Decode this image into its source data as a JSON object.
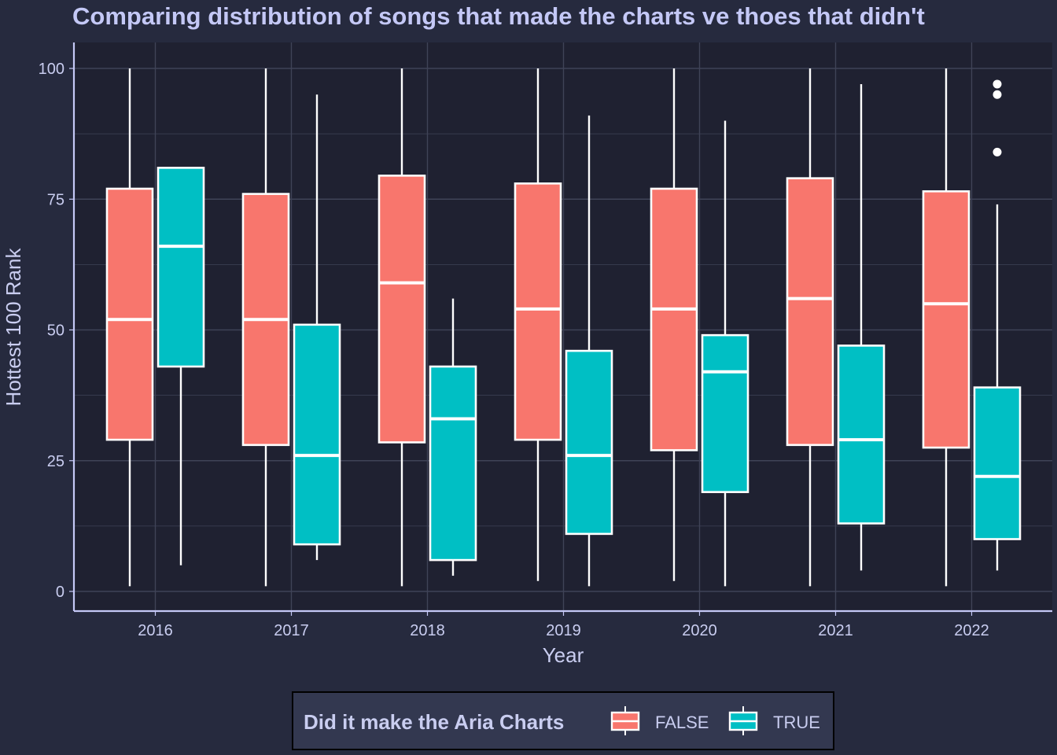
{
  "chart_data": {
    "type": "boxplot",
    "title": "Comparing distribution of songs that made the charts ve thoes that didn't",
    "xlabel": "Year",
    "ylabel": "Hottest 100 Rank",
    "categories": [
      "2016",
      "2017",
      "2018",
      "2019",
      "2020",
      "2021",
      "2022"
    ],
    "ylim": [
      -4,
      105
    ],
    "yticks": [
      0,
      25,
      50,
      75,
      100
    ],
    "y_tick_labels": [
      "0",
      "25",
      "50",
      "75",
      "100"
    ],
    "grid": true,
    "legend": {
      "title": "Did it make the Aria Charts",
      "position": "bottom",
      "entries": [
        "FALSE",
        "TRUE"
      ]
    },
    "colors": {
      "background": "#262a3e",
      "panel": "#1f2131",
      "grid": "#3f4357",
      "axis": "#c4c8f6",
      "box_outline": "#ffffff",
      "FALSE": "#f8766d",
      "TRUE": "#00bfc4",
      "legend_bg": "#333850"
    },
    "series": [
      {
        "name": "FALSE",
        "boxes": [
          {
            "min": 1,
            "q1": 29,
            "median": 52,
            "q3": 77,
            "max": 100,
            "outliers": []
          },
          {
            "min": 1,
            "q1": 28,
            "median": 52,
            "q3": 76,
            "max": 100,
            "outliers": []
          },
          {
            "min": 1,
            "q1": 28.5,
            "median": 59,
            "q3": 79.5,
            "max": 100,
            "outliers": []
          },
          {
            "min": 2,
            "q1": 29,
            "median": 54,
            "q3": 78,
            "max": 100,
            "outliers": []
          },
          {
            "min": 2,
            "q1": 27,
            "median": 54,
            "q3": 77,
            "max": 100,
            "outliers": []
          },
          {
            "min": 1,
            "q1": 28,
            "median": 56,
            "q3": 79,
            "max": 100,
            "outliers": []
          },
          {
            "min": 1,
            "q1": 27.5,
            "median": 55,
            "q3": 76.5,
            "max": 100,
            "outliers": []
          }
        ]
      },
      {
        "name": "TRUE",
        "boxes": [
          {
            "min": 5,
            "q1": 43,
            "median": 66,
            "q3": 81,
            "max": 81,
            "outliers": []
          },
          {
            "min": 6,
            "q1": 9,
            "median": 26,
            "q3": 51,
            "max": 95,
            "outliers": []
          },
          {
            "min": 3,
            "q1": 6,
            "median": 33,
            "q3": 43,
            "max": 56,
            "outliers": []
          },
          {
            "min": 1,
            "q1": 11,
            "median": 26,
            "q3": 46,
            "max": 91,
            "outliers": []
          },
          {
            "min": 1,
            "q1": 19,
            "median": 42,
            "q3": 49,
            "max": 90,
            "outliers": []
          },
          {
            "min": 4,
            "q1": 13,
            "median": 29,
            "q3": 47,
            "max": 97,
            "outliers": []
          },
          {
            "min": 4,
            "q1": 10,
            "median": 22,
            "q3": 39,
            "max": 74,
            "outliers": [
              84,
              95,
              97
            ]
          }
        ]
      }
    ]
  }
}
